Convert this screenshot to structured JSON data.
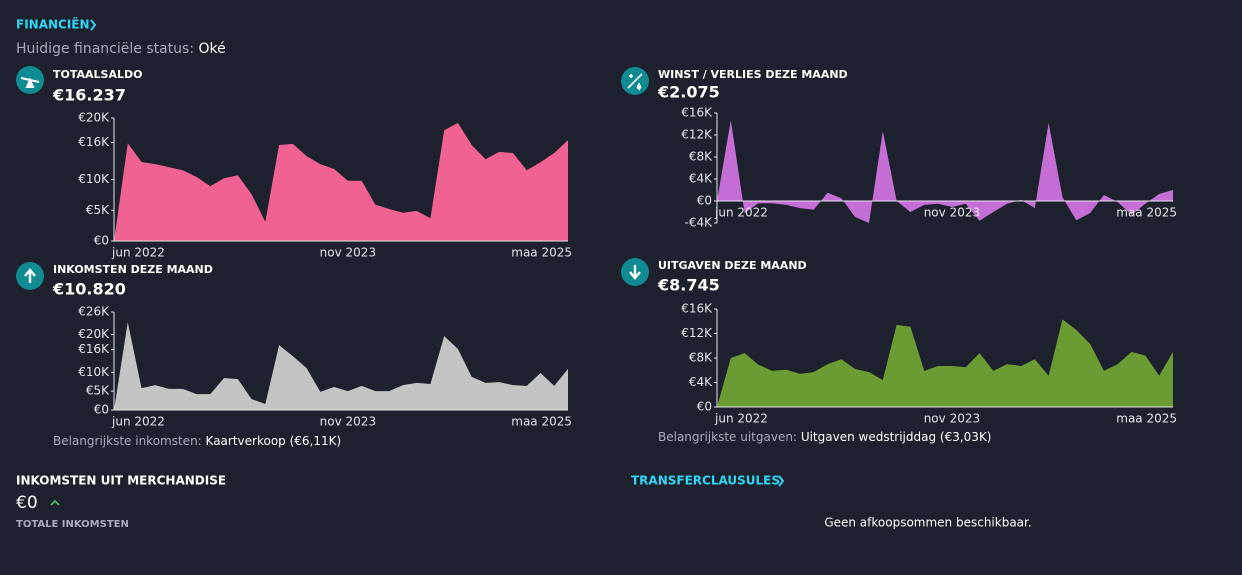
{
  "header": {
    "title": "FINANCIËN",
    "status_label": "Huidige financiële status:",
    "status_value": "Oké"
  },
  "chart_data": [
    {
      "type": "area",
      "title": "TOTAALSALDO",
      "subtitle": "€16.237",
      "color": "#f06292",
      "categories": [
        "jun 2022",
        null,
        null,
        null,
        null,
        null,
        null,
        null,
        null,
        null,
        null,
        null,
        null,
        null,
        null,
        null,
        null,
        "nov 2023",
        null,
        null,
        null,
        null,
        null,
        null,
        null,
        null,
        null,
        null,
        null,
        null,
        null,
        null,
        null,
        "maa 2025"
      ],
      "values": [
        0,
        15900,
        12850,
        12500,
        12000,
        11500,
        10400,
        8900,
        10200,
        10700,
        7600,
        3100,
        15600,
        15800,
        13800,
        12500,
        11700,
        9800,
        9800,
        5900,
        5200,
        4600,
        4900,
        3700,
        18000,
        19200,
        15600,
        13300,
        14500,
        14300,
        11500,
        12800,
        14300,
        16400
      ],
      "ylim": [
        0,
        20000
      ],
      "yticks": [
        {
          "value": 0,
          "label": "€0"
        },
        {
          "value": 5000,
          "label": "€5K"
        },
        {
          "value": 10000,
          "label": "€10K"
        },
        {
          "value": 16000,
          "label": "€16K"
        },
        {
          "value": 20000,
          "label": "€20K"
        }
      ]
    },
    {
      "type": "area",
      "title": "WINST / VERLIES DEZE MAAND",
      "subtitle": "€2.075",
      "color": "#c56fd6",
      "categories": [
        "jun 2022",
        null,
        null,
        null,
        null,
        null,
        null,
        null,
        null,
        null,
        null,
        null,
        null,
        null,
        null,
        null,
        null,
        "nov 2023",
        null,
        null,
        null,
        null,
        null,
        null,
        null,
        null,
        null,
        null,
        null,
        null,
        null,
        null,
        null,
        "maa 2025"
      ],
      "values": [
        0,
        14700,
        -2200,
        -400,
        -400,
        -700,
        -1300,
        -1600,
        1500,
        500,
        -2900,
        -4000,
        12700,
        0,
        -2000,
        -700,
        -500,
        -1100,
        -500,
        -3600,
        -2000,
        -500,
        200,
        -1300,
        14200,
        700,
        -3500,
        -2200,
        1100,
        -200,
        -2500,
        -500,
        1300,
        2000
      ],
      "ylim": [
        -4000,
        16000
      ],
      "yticks": [
        {
          "value": -4000,
          "label": "-€4K"
        },
        {
          "value": 0,
          "label": "€0"
        },
        {
          "value": 4000,
          "label": "€4K"
        },
        {
          "value": 8000,
          "label": "€8K"
        },
        {
          "value": 12000,
          "label": "€12K"
        },
        {
          "value": 16000,
          "label": "€16K"
        }
      ]
    },
    {
      "type": "area",
      "title": "INKOMSTEN DEZE MAAND",
      "subtitle": "€10.820",
      "color": "#c4c4c4",
      "note_label": "Belangrijkste inkomsten:",
      "note_value": "Kaartverkoop (€6,11K)",
      "categories": [
        "jun 2022",
        null,
        null,
        null,
        null,
        null,
        null,
        null,
        null,
        null,
        null,
        null,
        null,
        null,
        null,
        null,
        null,
        "nov 2023",
        null,
        null,
        null,
        null,
        null,
        null,
        null,
        null,
        null,
        null,
        null,
        null,
        null,
        null,
        null,
        "maa 2025"
      ],
      "values": [
        0,
        23300,
        5800,
        6600,
        5600,
        5600,
        4200,
        4200,
        8500,
        8200,
        2900,
        1600,
        17200,
        14300,
        11100,
        4800,
        6100,
        5000,
        6400,
        5000,
        5000,
        6600,
        7200,
        6900,
        19600,
        16200,
        8800,
        7200,
        7400,
        6600,
        6400,
        9800,
        6400,
        10900
      ],
      "ylim": [
        0,
        26000
      ],
      "yticks": [
        {
          "value": 0,
          "label": "€0"
        },
        {
          "value": 5000,
          "label": "€5K"
        },
        {
          "value": 10000,
          "label": "€10K"
        },
        {
          "value": 16000,
          "label": "€16K"
        },
        {
          "value": 20000,
          "label": "€20K"
        },
        {
          "value": 26000,
          "label": "€26K"
        }
      ]
    },
    {
      "type": "area",
      "title": "UITGAVEN DEZE MAAND",
      "subtitle": "€8.745",
      "color": "#6a9c33",
      "note_label": "Belangrijkste uitgaven:",
      "note_value": "Uitgaven wedstrijddag (€3,03K)",
      "categories": [
        "jun 2022",
        null,
        null,
        null,
        null,
        null,
        null,
        null,
        null,
        null,
        null,
        null,
        null,
        null,
        null,
        null,
        null,
        "nov 2023",
        null,
        null,
        null,
        null,
        null,
        null,
        null,
        null,
        null,
        null,
        null,
        null,
        null,
        null,
        null,
        "maa 2025"
      ],
      "values": [
        0,
        8000,
        8800,
        6900,
        5900,
        6100,
        5400,
        5700,
        7000,
        7800,
        6200,
        5700,
        4400,
        13400,
        13100,
        5900,
        6700,
        6700,
        6500,
        8800,
        5900,
        7000,
        6700,
        7800,
        5100,
        14300,
        12600,
        10300,
        5900,
        7000,
        9000,
        8400,
        5100,
        9000
      ],
      "ylim": [
        0,
        16000
      ],
      "yticks": [
        {
          "value": 0,
          "label": "€0"
        },
        {
          "value": 4000,
          "label": "€4K"
        },
        {
          "value": 8000,
          "label": "€8K"
        },
        {
          "value": 12000,
          "label": "€12K"
        },
        {
          "value": 16000,
          "label": "€16K"
        }
      ]
    }
  ],
  "merchandise": {
    "title": "INKOMSTEN UIT MERCHANDISE",
    "amount": "€0",
    "caption": "TOTALE INKOMSTEN"
  },
  "transfer": {
    "title": "TRANSFERCLAUSULES",
    "message": "Geen afkoopsommen beschikbaar."
  }
}
